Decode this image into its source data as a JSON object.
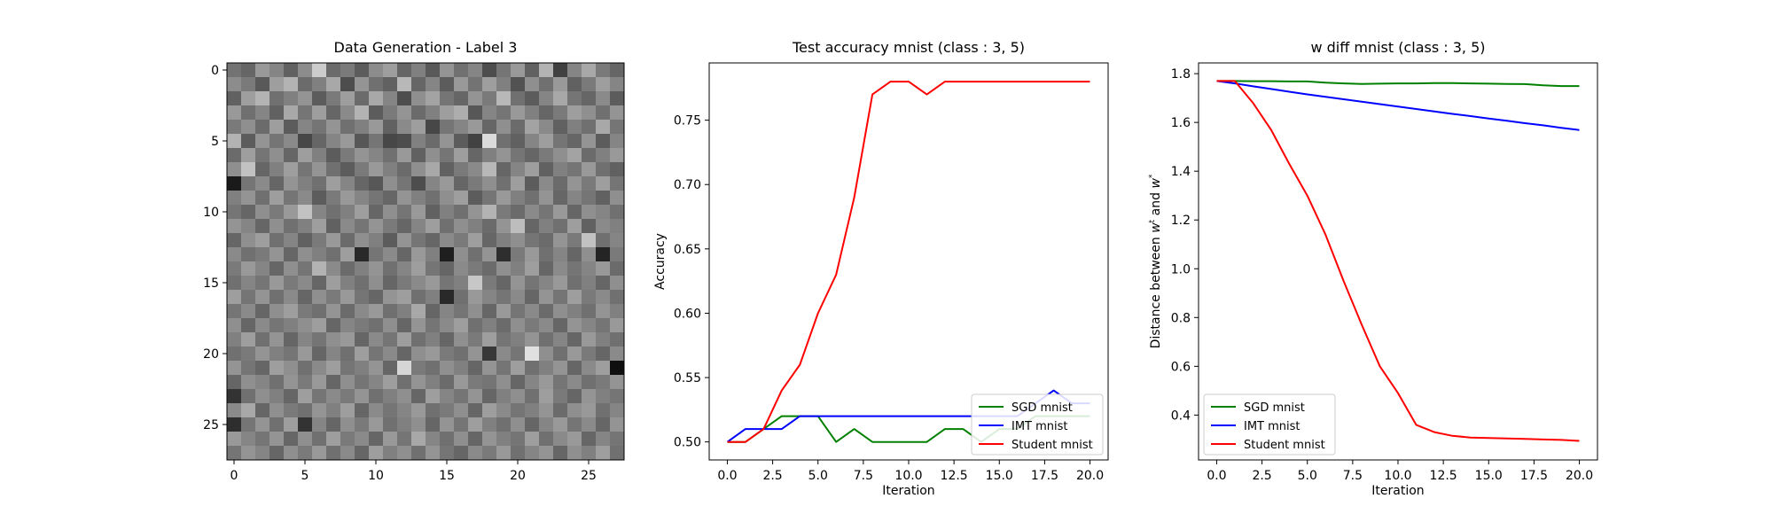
{
  "chart_data": [
    {
      "type": "heatmap",
      "title": "Data Generation - Label 3",
      "colormap": "gray",
      "rows": 28,
      "cols": 28,
      "xticks": [
        "0",
        "5",
        "10",
        "15",
        "20",
        "25"
      ],
      "yticks": [
        "0",
        "5",
        "10",
        "15",
        "20",
        "25"
      ],
      "xlim": [
        -0.5,
        27.5
      ],
      "ylim": [
        27.5,
        -0.5
      ],
      "values": [
        [
          0.45,
          0.4,
          0.6,
          0.52,
          0.38,
          0.55,
          0.8,
          0.42,
          0.48,
          0.36,
          0.55,
          0.62,
          0.4,
          0.5,
          0.35,
          0.58,
          0.44,
          0.52,
          0.3,
          0.46,
          0.6,
          0.38,
          0.7,
          0.25,
          0.52,
          0.66,
          0.48,
          0.4
        ],
        [
          0.55,
          0.48,
          0.35,
          0.62,
          0.7,
          0.42,
          0.5,
          0.66,
          0.3,
          0.58,
          0.44,
          0.38,
          0.72,
          0.4,
          0.52,
          0.36,
          0.6,
          0.45,
          0.62,
          0.5,
          0.32,
          0.56,
          0.44,
          0.6,
          0.38,
          0.48,
          0.62,
          0.52
        ],
        [
          0.38,
          0.62,
          0.7,
          0.44,
          0.5,
          0.58,
          0.36,
          0.48,
          0.62,
          0.42,
          0.66,
          0.52,
          0.3,
          0.56,
          0.64,
          0.46,
          0.4,
          0.58,
          0.48,
          0.72,
          0.44,
          0.36,
          0.52,
          0.66,
          0.46,
          0.4,
          0.54,
          0.36
        ],
        [
          0.6,
          0.44,
          0.52,
          0.38,
          0.66,
          0.46,
          0.62,
          0.4,
          0.54,
          0.7,
          0.36,
          0.48,
          0.58,
          0.42,
          0.5,
          0.62,
          0.68,
          0.34,
          0.52,
          0.46,
          0.6,
          0.5,
          0.4,
          0.48,
          0.62,
          0.56,
          0.44,
          0.58
        ],
        [
          0.48,
          0.56,
          0.42,
          0.62,
          0.36,
          0.52,
          0.46,
          0.58,
          0.44,
          0.5,
          0.6,
          0.38,
          0.54,
          0.62,
          0.28,
          0.46,
          0.52,
          0.6,
          0.4,
          0.56,
          0.42,
          0.64,
          0.54,
          0.38,
          0.5,
          0.44,
          0.66,
          0.46
        ],
        [
          0.7,
          0.36,
          0.58,
          0.46,
          0.54,
          0.28,
          0.4,
          0.52,
          0.6,
          0.34,
          0.46,
          0.28,
          0.3,
          0.5,
          0.42,
          0.58,
          0.36,
          0.26,
          0.86,
          0.44,
          0.38,
          0.52,
          0.62,
          0.46,
          0.4,
          0.58,
          0.36,
          0.52
        ],
        [
          0.42,
          0.62,
          0.46,
          0.56,
          0.4,
          0.62,
          0.5,
          0.36,
          0.48,
          0.58,
          0.52,
          0.44,
          0.6,
          0.38,
          0.56,
          0.46,
          0.62,
          0.4,
          0.5,
          0.58,
          0.46,
          0.4,
          0.48,
          0.56,
          0.64,
          0.42,
          0.5,
          0.6
        ],
        [
          0.56,
          0.76,
          0.4,
          0.5,
          0.62,
          0.46,
          0.58,
          0.44,
          0.36,
          0.48,
          0.6,
          0.5,
          0.42,
          0.56,
          0.66,
          0.38,
          0.48,
          0.54,
          0.72,
          0.4,
          0.52,
          0.62,
          0.38,
          0.5,
          0.46,
          0.6,
          0.44,
          0.38
        ],
        [
          0.1,
          0.46,
          0.54,
          0.4,
          0.58,
          0.5,
          0.44,
          0.62,
          0.52,
          0.4,
          0.34,
          0.56,
          0.46,
          0.3,
          0.52,
          0.6,
          0.4,
          0.48,
          0.56,
          0.44,
          0.62,
          0.36,
          0.54,
          0.42,
          0.58,
          0.48,
          0.62,
          0.46
        ],
        [
          0.5,
          0.58,
          0.44,
          0.62,
          0.46,
          0.54,
          0.36,
          0.48,
          0.6,
          0.52,
          0.46,
          0.4,
          0.58,
          0.5,
          0.44,
          0.56,
          0.62,
          0.36,
          0.46,
          0.6,
          0.5,
          0.44,
          0.58,
          0.4,
          0.52,
          0.46,
          0.38,
          0.56
        ],
        [
          0.46,
          0.4,
          0.56,
          0.48,
          0.6,
          0.76,
          0.52,
          0.44,
          0.5,
          0.62,
          0.4,
          0.56,
          0.46,
          0.6,
          0.38,
          0.5,
          0.44,
          0.58,
          0.7,
          0.48,
          0.42,
          0.54,
          0.46,
          0.6,
          0.4,
          0.56,
          0.52,
          0.44
        ],
        [
          0.58,
          0.52,
          0.4,
          0.56,
          0.44,
          0.5,
          0.62,
          0.38,
          0.54,
          0.46,
          0.58,
          0.48,
          0.4,
          0.52,
          0.62,
          0.44,
          0.56,
          0.5,
          0.42,
          0.58,
          0.74,
          0.4,
          0.5,
          0.44,
          0.62,
          0.38,
          0.54,
          0.5
        ],
        [
          0.4,
          0.56,
          0.62,
          0.44,
          0.52,
          0.38,
          0.48,
          0.6,
          0.42,
          0.56,
          0.5,
          0.36,
          0.58,
          0.46,
          0.4,
          0.54,
          0.48,
          0.62,
          0.4,
          0.5,
          0.56,
          0.46,
          0.42,
          0.58,
          0.48,
          0.76,
          0.44,
          0.52
        ],
        [
          0.54,
          0.44,
          0.48,
          0.58,
          0.4,
          0.56,
          0.5,
          0.44,
          0.62,
          0.16,
          0.46,
          0.54,
          0.4,
          0.6,
          0.5,
          0.12,
          0.56,
          0.44,
          0.58,
          0.18,
          0.48,
          0.6,
          0.44,
          0.52,
          0.4,
          0.56,
          0.14,
          0.48
        ],
        [
          0.48,
          0.6,
          0.52,
          0.4,
          0.56,
          0.46,
          0.7,
          0.54,
          0.42,
          0.5,
          0.58,
          0.44,
          0.52,
          0.62,
          0.46,
          0.4,
          0.54,
          0.48,
          0.42,
          0.56,
          0.5,
          0.62,
          0.4,
          0.54,
          0.46,
          0.52,
          0.6,
          0.42
        ],
        [
          0.44,
          0.52,
          0.46,
          0.6,
          0.48,
          0.54,
          0.4,
          0.62,
          0.5,
          0.44,
          0.56,
          0.4,
          0.48,
          0.54,
          0.6,
          0.46,
          0.5,
          0.78,
          0.48,
          0.4,
          0.58,
          0.46,
          0.52,
          0.6,
          0.44,
          0.5,
          0.4,
          0.56
        ],
        [
          0.62,
          0.46,
          0.58,
          0.44,
          0.54,
          0.4,
          0.56,
          0.48,
          0.6,
          0.46,
          0.4,
          0.58,
          0.62,
          0.44,
          0.5,
          0.16,
          0.44,
          0.6,
          0.52,
          0.46,
          0.54,
          0.4,
          0.58,
          0.46,
          0.62,
          0.48,
          0.54,
          0.44
        ],
        [
          0.46,
          0.54,
          0.4,
          0.56,
          0.62,
          0.48,
          0.44,
          0.58,
          0.42,
          0.54,
          0.6,
          0.44,
          0.5,
          0.66,
          0.4,
          0.52,
          0.46,
          0.56,
          0.4,
          0.6,
          0.46,
          0.54,
          0.42,
          0.56,
          0.5,
          0.44,
          0.58,
          0.5
        ],
        [
          0.56,
          0.4,
          0.54,
          0.46,
          0.5,
          0.56,
          0.62,
          0.4,
          0.52,
          0.48,
          0.44,
          0.56,
          0.4,
          0.58,
          0.46,
          0.54,
          0.62,
          0.44,
          0.5,
          0.42,
          0.56,
          0.48,
          0.54,
          0.4,
          0.58,
          0.52,
          0.46,
          0.6
        ],
        [
          0.5,
          0.62,
          0.44,
          0.58,
          0.4,
          0.52,
          0.46,
          0.56,
          0.6,
          0.4,
          0.54,
          0.46,
          0.62,
          0.44,
          0.5,
          0.4,
          0.56,
          0.48,
          0.62,
          0.46,
          0.5,
          0.58,
          0.44,
          0.52,
          0.4,
          0.6,
          0.5,
          0.44
        ],
        [
          0.44,
          0.48,
          0.58,
          0.5,
          0.46,
          0.6,
          0.4,
          0.52,
          0.44,
          0.62,
          0.46,
          0.54,
          0.4,
          0.56,
          0.6,
          0.48,
          0.44,
          0.58,
          0.22,
          0.54,
          0.46,
          0.88,
          0.56,
          0.44,
          0.6,
          0.48,
          0.4,
          0.54
        ],
        [
          0.58,
          0.46,
          0.4,
          0.62,
          0.56,
          0.44,
          0.54,
          0.62,
          0.46,
          0.5,
          0.58,
          0.4,
          0.84,
          0.48,
          0.44,
          0.56,
          0.5,
          0.4,
          0.58,
          0.46,
          0.62,
          0.44,
          0.5,
          0.58,
          0.4,
          0.54,
          0.62,
          0.06
        ],
        [
          0.4,
          0.56,
          0.52,
          0.44,
          0.58,
          0.48,
          0.6,
          0.4,
          0.56,
          0.46,
          0.52,
          0.62,
          0.44,
          0.58,
          0.5,
          0.42,
          0.6,
          0.48,
          0.46,
          0.56,
          0.4,
          0.52,
          0.6,
          0.46,
          0.54,
          0.44,
          0.48,
          0.58
        ],
        [
          0.2,
          0.44,
          0.56,
          0.5,
          0.4,
          0.62,
          0.46,
          0.54,
          0.48,
          0.58,
          0.44,
          0.5,
          0.56,
          0.4,
          0.62,
          0.52,
          0.46,
          0.58,
          0.4,
          0.5,
          0.56,
          0.44,
          0.62,
          0.48,
          0.4,
          0.58,
          0.5,
          0.46
        ],
        [
          0.54,
          0.66,
          0.4,
          0.56,
          0.48,
          0.44,
          0.58,
          0.5,
          0.62,
          0.4,
          0.54,
          0.46,
          0.52,
          0.6,
          0.44,
          0.48,
          0.56,
          0.4,
          0.62,
          0.54,
          0.46,
          0.5,
          0.58,
          0.42,
          0.56,
          0.6,
          0.44,
          0.52
        ],
        [
          0.18,
          0.46,
          0.58,
          0.44,
          0.62,
          0.2,
          0.52,
          0.4,
          0.56,
          0.48,
          0.6,
          0.44,
          0.5,
          0.56,
          0.4,
          0.58,
          0.46,
          0.62,
          0.5,
          0.44,
          0.56,
          0.4,
          0.52,
          0.6,
          0.46,
          0.54,
          0.4,
          0.58
        ],
        [
          0.6,
          0.52,
          0.46,
          0.58,
          0.4,
          0.56,
          0.44,
          0.62,
          0.48,
          0.54,
          0.4,
          0.6,
          0.46,
          0.66,
          0.52,
          0.44,
          0.56,
          0.4,
          0.58,
          0.5,
          0.46,
          0.62,
          0.44,
          0.54,
          0.6,
          0.4,
          0.52,
          0.46
        ],
        [
          0.46,
          0.58,
          0.52,
          0.4,
          0.56,
          0.48,
          0.6,
          0.44,
          0.54,
          0.4,
          0.62,
          0.5,
          0.56,
          0.44,
          0.58,
          0.46,
          0.4,
          0.54,
          0.48,
          0.6,
          0.44,
          0.52,
          0.58,
          0.4,
          0.56,
          0.5,
          0.62,
          0.44
        ]
      ]
    },
    {
      "type": "line",
      "title": "Test accuracy mnist (class : 3, 5)",
      "xlabel": "Iteration",
      "ylabel": "Accuracy",
      "xlim": [
        -1.0,
        21.0
      ],
      "ylim": [
        0.486,
        0.7945
      ],
      "xticks": [
        "0.0",
        "2.5",
        "5.0",
        "7.5",
        "10.0",
        "12.5",
        "15.0",
        "17.5",
        "20.0"
      ],
      "yticks": [
        "0.50",
        "0.55",
        "0.60",
        "0.65",
        "0.70",
        "0.75"
      ],
      "legend_placement": "lower right",
      "x": [
        0,
        1,
        2,
        3,
        4,
        5,
        6,
        7,
        8,
        9,
        10,
        11,
        12,
        13,
        14,
        15,
        16,
        17,
        18,
        19,
        20
      ],
      "series": [
        {
          "name": "SGD mnist",
          "color": "#008000",
          "values": [
            0.5,
            0.5,
            0.51,
            0.52,
            0.52,
            0.52,
            0.5,
            0.51,
            0.5,
            0.5,
            0.5,
            0.5,
            0.51,
            0.51,
            0.5,
            0.51,
            0.51,
            0.52,
            0.52,
            0.52,
            0.52
          ]
        },
        {
          "name": "IMT mnist",
          "color": "#0000ff",
          "values": [
            0.5,
            0.51,
            0.51,
            0.51,
            0.52,
            0.52,
            0.52,
            0.52,
            0.52,
            0.52,
            0.52,
            0.52,
            0.52,
            0.52,
            0.52,
            0.52,
            0.52,
            0.53,
            0.54,
            0.53,
            0.53
          ]
        },
        {
          "name": "Student mnist",
          "color": "#ff0000",
          "values": [
            0.5,
            0.5,
            0.51,
            0.54,
            0.56,
            0.6,
            0.63,
            0.69,
            0.77,
            0.78,
            0.78,
            0.77,
            0.78,
            0.78,
            0.78,
            0.78,
            0.78,
            0.78,
            0.78,
            0.78,
            0.78
          ]
        }
      ]
    },
    {
      "type": "line",
      "title": "w diff mnist (class : 3, 5)",
      "xlabel": "Iteration",
      "ylabel_parts": [
        "Distance between ",
        "w",
        "t",
        " and ",
        "w",
        "*"
      ],
      "xlim": [
        -1.0,
        21.0
      ],
      "ylim": [
        0.216,
        1.844
      ],
      "xticks": [
        "0.0",
        "2.5",
        "5.0",
        "7.5",
        "10.0",
        "12.5",
        "15.0",
        "17.5",
        "20.0"
      ],
      "yticks": [
        "0.4",
        "0.6",
        "0.8",
        "1.0",
        "1.2",
        "1.4",
        "1.6",
        "1.8"
      ],
      "legend_placement": "lower left",
      "x": [
        0,
        1,
        2,
        3,
        4,
        5,
        6,
        7,
        8,
        9,
        10,
        11,
        12,
        13,
        14,
        15,
        16,
        17,
        18,
        19,
        20
      ],
      "series": [
        {
          "name": "SGD mnist",
          "color": "#008000",
          "values": [
            1.77,
            1.77,
            1.769,
            1.769,
            1.768,
            1.768,
            1.763,
            1.76,
            1.758,
            1.759,
            1.76,
            1.76,
            1.761,
            1.761,
            1.76,
            1.759,
            1.758,
            1.757,
            1.752,
            1.749,
            1.749
          ]
        },
        {
          "name": "IMT mnist",
          "color": "#0000ff",
          "values": [
            1.77,
            1.76,
            1.748,
            1.737,
            1.726,
            1.715,
            1.705,
            1.695,
            1.685,
            1.675,
            1.665,
            1.655,
            1.645,
            1.635,
            1.626,
            1.616,
            1.607,
            1.597,
            1.588,
            1.578,
            1.569
          ]
        },
        {
          "name": "Student mnist",
          "color": "#ff0000",
          "values": [
            1.77,
            1.77,
            1.68,
            1.57,
            1.43,
            1.3,
            1.14,
            0.95,
            0.77,
            0.6,
            0.49,
            0.36,
            0.33,
            0.315,
            0.308,
            0.306,
            0.304,
            0.302,
            0.3,
            0.298,
            0.294
          ]
        }
      ]
    }
  ]
}
